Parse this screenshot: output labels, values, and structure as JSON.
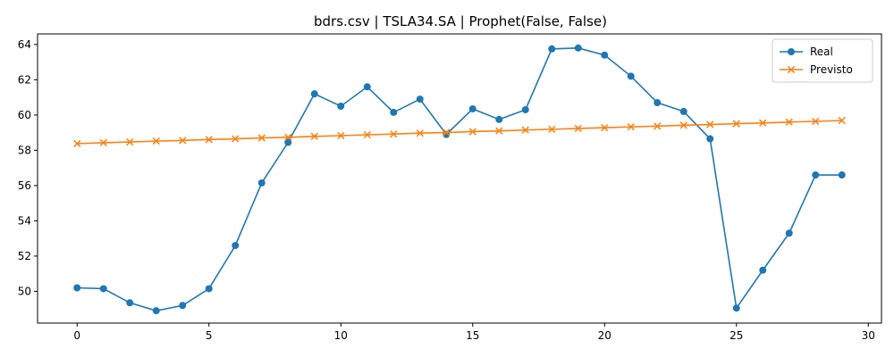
{
  "chart_data": {
    "type": "line",
    "title": "bdrs.csv | TSLA34.SA | Prophet(False, False)",
    "xlabel": "",
    "ylabel": "",
    "xlim": [
      -1.5,
      30.5
    ],
    "ylim": [
      48.2,
      64.6
    ],
    "xticks": [
      0,
      5,
      10,
      15,
      20,
      25,
      30
    ],
    "yticks": [
      50,
      52,
      54,
      56,
      58,
      60,
      62,
      64
    ],
    "grid": false,
    "legend_position": "top-right",
    "x": [
      0,
      1,
      2,
      3,
      4,
      5,
      6,
      7,
      8,
      9,
      10,
      11,
      12,
      13,
      14,
      15,
      16,
      17,
      18,
      19,
      20,
      21,
      22,
      23,
      24,
      25,
      26,
      27,
      28,
      29
    ],
    "series": [
      {
        "name": "Real",
        "color": "#1f77b4",
        "marker": "circle",
        "values": [
          50.2,
          50.15,
          49.35,
          48.9,
          49.2,
          50.15,
          52.6,
          56.15,
          58.45,
          61.2,
          60.5,
          61.6,
          60.15,
          60.9,
          58.9,
          60.35,
          59.75,
          60.3,
          63.75,
          63.8,
          63.4,
          62.2,
          60.7,
          60.2,
          58.65,
          49.05,
          51.2,
          53.3,
          56.6,
          56.6
        ]
      },
      {
        "name": "Previsto",
        "color": "#ff7f0e",
        "marker": "x",
        "values": [
          58.38,
          58.43,
          58.47,
          58.52,
          58.56,
          58.61,
          58.65,
          58.7,
          58.74,
          58.79,
          58.83,
          58.88,
          58.92,
          58.97,
          59.01,
          59.06,
          59.1,
          59.15,
          59.19,
          59.24,
          59.28,
          59.33,
          59.37,
          59.42,
          59.46,
          59.51,
          59.55,
          59.6,
          59.64,
          59.69
        ]
      }
    ]
  }
}
